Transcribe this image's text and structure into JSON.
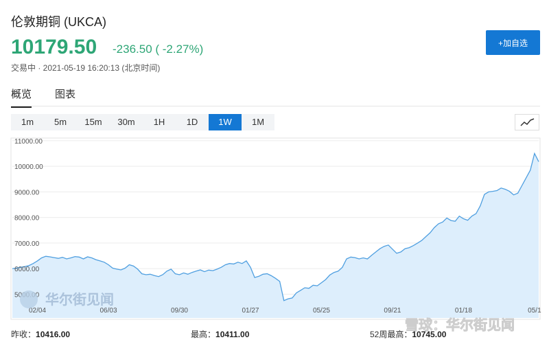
{
  "header": {
    "title": "伦敦期铜 (UKCA)",
    "price": "10179.50",
    "change": "-236.50 ( -2.27%)",
    "status": "交易中 · 2021-05-19 16:20:13 (北京时间)",
    "button": "+加自选"
  },
  "tabs": {
    "items": [
      "概览",
      "图表"
    ],
    "active": 0
  },
  "intervals": {
    "items": [
      "1m",
      "5m",
      "15m",
      "30m",
      "1H",
      "1D",
      "1W",
      "1M"
    ],
    "active": 6
  },
  "watermarks": {
    "chart": "华尔街见闻",
    "corner": "雪球：华尔街见闻"
  },
  "stats": [
    {
      "label": "昨收：",
      "value": "10416.00"
    },
    {
      "label": "最高：",
      "value": "10411.00"
    },
    {
      "label": "52周最高：",
      "value": "10745.00"
    }
  ],
  "chart_data": {
    "type": "area",
    "categories": [
      null,
      null,
      null,
      null,
      null,
      null,
      "02/04",
      null,
      null,
      null,
      null,
      null,
      null,
      null,
      null,
      null,
      null,
      null,
      null,
      null,
      null,
      null,
      null,
      "06/03",
      null,
      null,
      null,
      null,
      null,
      null,
      null,
      null,
      null,
      null,
      null,
      null,
      null,
      null,
      null,
      null,
      "09/30",
      null,
      null,
      null,
      null,
      null,
      null,
      null,
      null,
      null,
      null,
      null,
      null,
      null,
      null,
      null,
      null,
      "01/27",
      null,
      null,
      null,
      null,
      null,
      null,
      null,
      null,
      null,
      null,
      null,
      null,
      null,
      null,
      null,
      null,
      "05/25",
      null,
      null,
      null,
      null,
      null,
      null,
      null,
      null,
      null,
      null,
      null,
      null,
      null,
      null,
      null,
      null,
      "09/21",
      null,
      null,
      null,
      null,
      null,
      null,
      null,
      null,
      null,
      null,
      null,
      null,
      null,
      null,
      null,
      null,
      "01/18",
      null,
      null,
      null,
      null,
      null,
      null,
      null,
      null,
      null,
      null,
      null,
      null,
      null,
      null,
      null,
      null,
      "05/1",
      null
    ],
    "series": [
      {
        "color": "#4f9fe0",
        "fill": "#ddeefc",
        "values": [
          6000,
          6020,
          6050,
          6080,
          6120,
          6200,
          6300,
          6420,
          6480,
          6460,
          6430,
          6400,
          6440,
          6380,
          6420,
          6470,
          6450,
          6380,
          6460,
          6420,
          6350,
          6300,
          6250,
          6150,
          6020,
          5980,
          5950,
          6020,
          6150,
          6100,
          5980,
          5800,
          5760,
          5780,
          5730,
          5690,
          5760,
          5900,
          5980,
          5800,
          5760,
          5830,
          5780,
          5850,
          5900,
          5950,
          5880,
          5940,
          5920,
          5980,
          6050,
          6150,
          6200,
          6180,
          6250,
          6200,
          6300,
          6050,
          5650,
          5700,
          5780,
          5800,
          5720,
          5620,
          5500,
          4750,
          4820,
          4850,
          5050,
          5150,
          5250,
          5230,
          5350,
          5330,
          5450,
          5570,
          5750,
          5850,
          5900,
          6050,
          6380,
          6450,
          6430,
          6380,
          6420,
          6380,
          6520,
          6650,
          6780,
          6870,
          6920,
          6760,
          6600,
          6650,
          6780,
          6820,
          6900,
          7000,
          7100,
          7250,
          7400,
          7600,
          7750,
          7820,
          7980,
          7880,
          7850,
          8050,
          7950,
          7890,
          8050,
          8150,
          8450,
          8900,
          9000,
          9020,
          9050,
          9150,
          9100,
          9020,
          8880,
          8950,
          9250,
          9550,
          9850,
          10500,
          10180
        ]
      }
    ],
    "ylim": [
      4070,
      11050
    ],
    "yticks": [
      {
        "value": 5000,
        "label": "5000.00"
      },
      {
        "value": 6000,
        "label": "6000.00"
      },
      {
        "value": 7000,
        "label": "7000.00"
      },
      {
        "value": 8000,
        "label": "8000.00"
      },
      {
        "value": 9000,
        "label": "9000.00"
      },
      {
        "value": 10000,
        "label": "10000.00"
      },
      {
        "value": 11000,
        "label": "11000.00"
      }
    ],
    "grid": true
  }
}
